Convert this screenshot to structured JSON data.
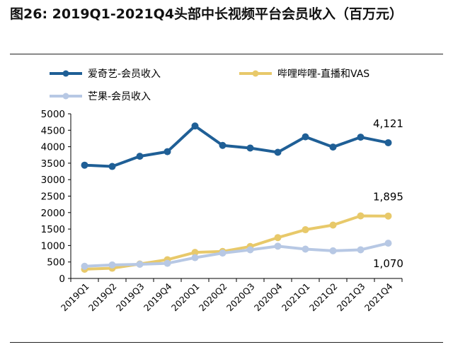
{
  "title": "图26: 2019Q1-2021Q4头部中长视频平台会员收入（百万元）",
  "colors": {
    "iqiyi": "#1f5f96",
    "bilibili": "#e8c96a",
    "mango": "#b7c8e4",
    "axis": "#000000"
  },
  "chart_data": {
    "type": "line",
    "title": "",
    "xlabel": "",
    "ylabel": "",
    "ylim": [
      0,
      5000
    ],
    "yticks": [
      0,
      500,
      1000,
      1500,
      2000,
      2500,
      3000,
      3500,
      4000,
      4500,
      5000
    ],
    "grid": false,
    "legend": "top",
    "categories": [
      "2019Q1",
      "2019Q2",
      "2019Q3",
      "2019Q4",
      "2020Q1",
      "2020Q2",
      "2020Q3",
      "2020Q4",
      "2021Q1",
      "2021Q2",
      "2021Q3",
      "2021Q4"
    ],
    "series": [
      {
        "name": "爱奇艺-会员收入",
        "color": "#1f5f96",
        "values": [
          3440,
          3400,
          3710,
          3850,
          4630,
          4040,
          3960,
          3830,
          4300,
          3990,
          4290,
          4121
        ]
      },
      {
        "name": "哔哩哔哩-直播和VAS",
        "color": "#e8c96a",
        "values": [
          280,
          310,
          440,
          570,
          790,
          820,
          970,
          1240,
          1480,
          1620,
          1900,
          1895
        ]
      },
      {
        "name": "芒果-会员收入",
        "color": "#b7c8e4",
        "values": [
          370,
          410,
          430,
          460,
          630,
          770,
          870,
          980,
          890,
          840,
          870,
          1070
        ]
      }
    ],
    "data_labels": [
      {
        "series": 0,
        "index": 11,
        "text": "4,121"
      },
      {
        "series": 1,
        "index": 11,
        "text": "1,895"
      },
      {
        "series": 2,
        "index": 11,
        "text": "1,070"
      }
    ]
  }
}
